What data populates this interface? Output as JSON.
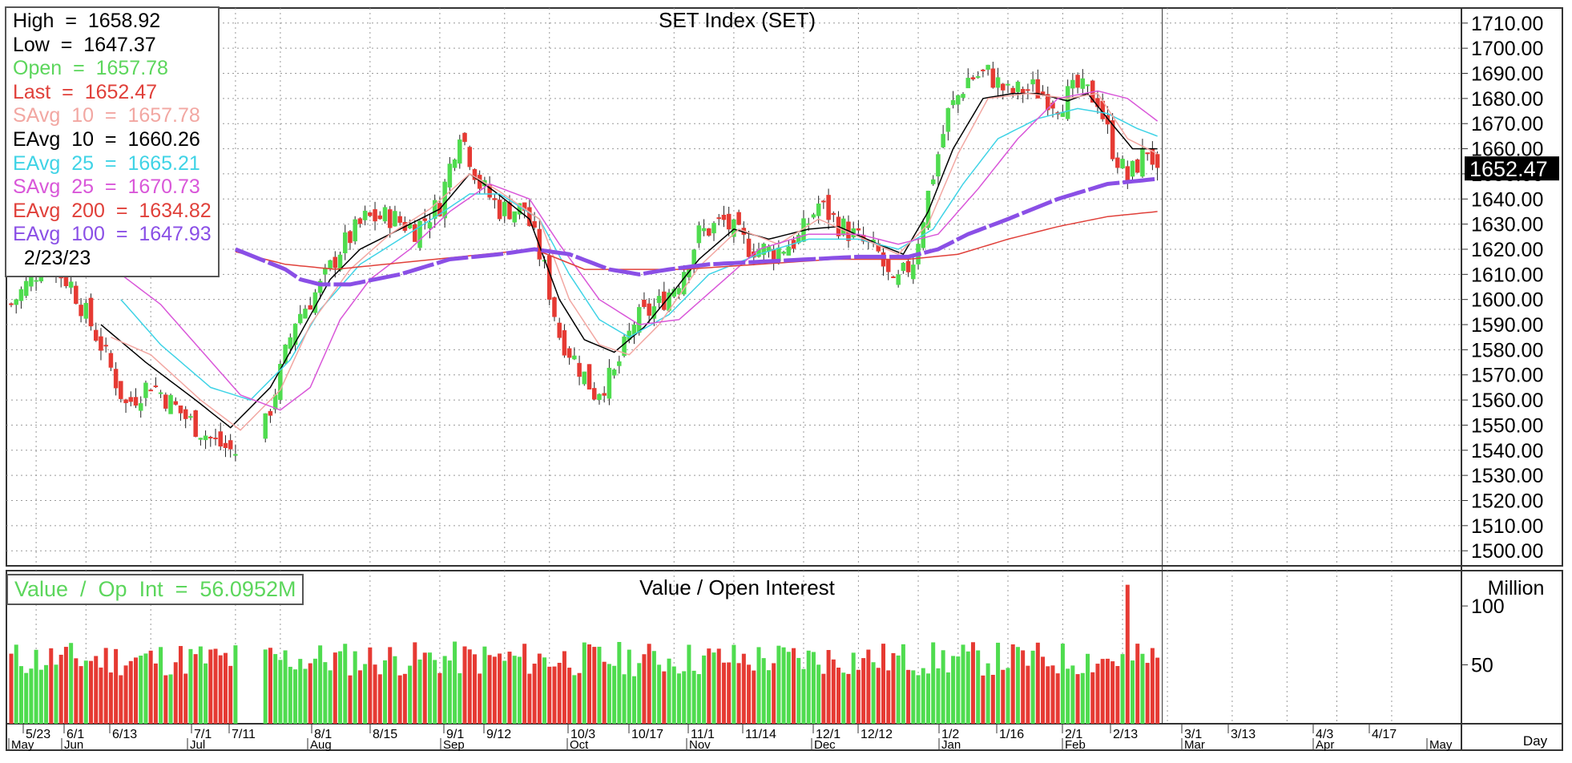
{
  "chart_data": {
    "type": "candlestick",
    "title": "SET  Index  (SET)",
    "last_price_tag": "1652.47",
    "price_axis": {
      "ylim": [
        1494,
        1716
      ],
      "ticks": [
        "1710.00",
        "1700.00",
        "1690.00",
        "1680.00",
        "1670.00",
        "1660.00",
        "1650.00",
        "1640.00",
        "1630.00",
        "1620.00",
        "1610.00",
        "1600.00",
        "1590.00",
        "1580.00",
        "1570.00",
        "1560.00",
        "1550.00",
        "1540.00",
        "1530.00",
        "1520.00",
        "1510.00",
        "1500.00"
      ]
    },
    "legend": [
      {
        "label": "High",
        "eq": "=",
        "value": "1658.92",
        "color": "#000000"
      },
      {
        "label": "Low",
        "eq": "=",
        "value": "1647.37",
        "color": "#000000"
      },
      {
        "label": "Open",
        "eq": "=",
        "value": "1657.78",
        "color": "#5cd65c"
      },
      {
        "label": "Last",
        "eq": "=",
        "value": "1652.47",
        "color": "#e0403a"
      },
      {
        "label": "SAvg  10",
        "eq": "=",
        "value": "1657.78",
        "color": "#f2a7a2"
      },
      {
        "label": "EAvg  10",
        "eq": "=",
        "value": "1660.26",
        "color": "#000000"
      },
      {
        "label": "EAvg  25",
        "eq": "=",
        "value": "1665.21",
        "color": "#3fd3e6"
      },
      {
        "label": "SAvg  25",
        "eq": "=",
        "value": "1670.73",
        "color": "#d957d9"
      },
      {
        "label": "EAvg  200",
        "eq": "=",
        "value": "1634.82",
        "color": "#e0403a"
      },
      {
        "label": "EAvg  100",
        "eq": "=",
        "value": "1647.93",
        "color": "#8a4fe6"
      }
    ],
    "legend_date": "2/23/23",
    "x_ticks": [
      "5/23",
      "6/1",
      "6/13",
      "7/1",
      "7/11",
      "8/1",
      "8/15",
      "9/1",
      "9/12",
      "10/3",
      "10/17",
      "11/1",
      "11/14",
      "12/1",
      "12/12",
      "1/2",
      "1/16",
      "2/1",
      "2/13",
      "3/1",
      "3/13",
      "4/3",
      "4/17"
    ],
    "x_months": [
      "May",
      "Jun",
      "Jul",
      "Aug",
      "Sep",
      "Oct",
      "Nov",
      "Dec",
      "Jan",
      "Feb",
      "Mar",
      "Apr",
      "May"
    ],
    "x_unit_label": "Day",
    "volume": {
      "title": "Value  /  Open  Interest",
      "legend": "Value  /  Op  Int  =  56.0952M",
      "unit_label": "Million",
      "ticks": [
        "100",
        "50"
      ],
      "ylim": [
        0,
        130
      ]
    },
    "price_anchors": [
      [
        0,
        1598
      ],
      [
        7,
        1616
      ],
      [
        12,
        1606
      ],
      [
        18,
        1582
      ],
      [
        23,
        1558
      ],
      [
        28,
        1567
      ],
      [
        35,
        1553
      ],
      [
        41,
        1543
      ],
      [
        46,
        1538
      ],
      [
        51,
        1550
      ],
      [
        57,
        1592
      ],
      [
        62,
        1605
      ],
      [
        66,
        1620
      ],
      [
        71,
        1632
      ],
      [
        76,
        1633
      ],
      [
        81,
        1628
      ],
      [
        86,
        1638
      ],
      [
        90,
        1668
      ],
      [
        94,
        1646
      ],
      [
        98,
        1636
      ],
      [
        103,
        1636
      ],
      [
        107,
        1612
      ],
      [
        110,
        1586
      ],
      [
        114,
        1573
      ],
      [
        117,
        1563
      ],
      [
        121,
        1570
      ],
      [
        125,
        1591
      ],
      [
        130,
        1598
      ],
      [
        134,
        1608
      ],
      [
        138,
        1626
      ],
      [
        143,
        1631
      ],
      [
        148,
        1621
      ],
      [
        153,
        1619
      ],
      [
        158,
        1624
      ],
      [
        162,
        1638
      ],
      [
        166,
        1630
      ],
      [
        170,
        1624
      ],
      [
        174,
        1618
      ],
      [
        177,
        1604
      ],
      [
        181,
        1616
      ],
      [
        184,
        1642
      ],
      [
        188,
        1674
      ],
      [
        192,
        1688
      ],
      [
        196,
        1690
      ],
      [
        200,
        1682
      ],
      [
        205,
        1684
      ],
      [
        210,
        1678
      ],
      [
        214,
        1684
      ],
      [
        218,
        1680
      ],
      [
        221,
        1660
      ],
      [
        224,
        1648
      ],
      [
        228,
        1660
      ],
      [
        230,
        1652
      ]
    ],
    "ohlc_last": {
      "open": 1657.78,
      "high": 1658.92,
      "low": 1647.37,
      "close": 1652.47
    },
    "ma_series": [
      {
        "name": "EAvg 10",
        "color": "#000000",
        "anchors": [
          [
            18,
            1590
          ],
          [
            27,
            1575
          ],
          [
            37,
            1560
          ],
          [
            44,
            1549
          ],
          [
            52,
            1565
          ],
          [
            59,
            1590
          ],
          [
            64,
            1608
          ],
          [
            70,
            1620
          ],
          [
            78,
            1628
          ],
          [
            86,
            1636
          ],
          [
            92,
            1650
          ],
          [
            97,
            1643
          ],
          [
            104,
            1632
          ],
          [
            110,
            1600
          ],
          [
            115,
            1584
          ],
          [
            121,
            1579
          ],
          [
            127,
            1589
          ],
          [
            132,
            1601
          ],
          [
            138,
            1616
          ],
          [
            145,
            1628
          ],
          [
            152,
            1624
          ],
          [
            160,
            1628
          ],
          [
            166,
            1629
          ],
          [
            174,
            1622
          ],
          [
            179,
            1618
          ],
          [
            184,
            1635
          ],
          [
            189,
            1660
          ],
          [
            195,
            1680
          ],
          [
            201,
            1682
          ],
          [
            206,
            1682
          ],
          [
            212,
            1679
          ],
          [
            216,
            1682
          ],
          [
            220,
            1672
          ],
          [
            225,
            1660
          ],
          [
            230,
            1660
          ]
        ]
      },
      {
        "name": "EAvg 25",
        "color": "#3fd3e6",
        "anchors": [
          [
            22,
            1600
          ],
          [
            30,
            1582
          ],
          [
            40,
            1565
          ],
          [
            48,
            1560
          ],
          [
            56,
            1576
          ],
          [
            62,
            1596
          ],
          [
            70,
            1614
          ],
          [
            78,
            1624
          ],
          [
            86,
            1634
          ],
          [
            92,
            1642
          ],
          [
            98,
            1642
          ],
          [
            106,
            1632
          ],
          [
            112,
            1610
          ],
          [
            118,
            1592
          ],
          [
            124,
            1585
          ],
          [
            132,
            1594
          ],
          [
            140,
            1610
          ],
          [
            150,
            1618
          ],
          [
            160,
            1624
          ],
          [
            170,
            1624
          ],
          [
            178,
            1620
          ],
          [
            185,
            1628
          ],
          [
            191,
            1646
          ],
          [
            198,
            1664
          ],
          [
            206,
            1672
          ],
          [
            214,
            1676
          ],
          [
            220,
            1674
          ],
          [
            226,
            1668
          ],
          [
            230,
            1665
          ]
        ]
      },
      {
        "name": "SAvg 10",
        "color": "#f2a7a2",
        "anchors": [
          [
            20,
            1585
          ],
          [
            28,
            1578
          ],
          [
            38,
            1560
          ],
          [
            46,
            1548
          ],
          [
            54,
            1564
          ],
          [
            60,
            1590
          ],
          [
            68,
            1612
          ],
          [
            76,
            1626
          ],
          [
            84,
            1636
          ],
          [
            92,
            1650
          ],
          [
            98,
            1643
          ],
          [
            106,
            1632
          ],
          [
            112,
            1600
          ],
          [
            118,
            1582
          ],
          [
            124,
            1578
          ],
          [
            130,
            1590
          ],
          [
            138,
            1613
          ],
          [
            146,
            1628
          ],
          [
            154,
            1622
          ],
          [
            162,
            1632
          ],
          [
            170,
            1625
          ],
          [
            178,
            1618
          ],
          [
            184,
            1630
          ],
          [
            190,
            1658
          ],
          [
            196,
            1680
          ],
          [
            204,
            1682
          ],
          [
            212,
            1680
          ],
          [
            218,
            1682
          ],
          [
            224,
            1664
          ],
          [
            230,
            1658
          ]
        ]
      },
      {
        "name": "SAvg 25",
        "color": "#d957d9",
        "anchors": [
          [
            22,
            1610
          ],
          [
            30,
            1598
          ],
          [
            38,
            1580
          ],
          [
            46,
            1562
          ],
          [
            54,
            1556
          ],
          [
            60,
            1565
          ],
          [
            66,
            1592
          ],
          [
            72,
            1608
          ],
          [
            80,
            1620
          ],
          [
            88,
            1635
          ],
          [
            96,
            1646
          ],
          [
            104,
            1640
          ],
          [
            110,
            1622
          ],
          [
            118,
            1600
          ],
          [
            126,
            1590
          ],
          [
            134,
            1592
          ],
          [
            142,
            1606
          ],
          [
            150,
            1620
          ],
          [
            160,
            1626
          ],
          [
            170,
            1626
          ],
          [
            178,
            1622
          ],
          [
            186,
            1626
          ],
          [
            194,
            1644
          ],
          [
            202,
            1664
          ],
          [
            210,
            1680
          ],
          [
            218,
            1683
          ],
          [
            224,
            1680
          ],
          [
            230,
            1671
          ]
        ]
      },
      {
        "name": "EAvg 200",
        "color": "#e0403a",
        "anchors": [
          [
            45,
            1619
          ],
          [
            55,
            1614
          ],
          [
            65,
            1612
          ],
          [
            75,
            1614
          ],
          [
            85,
            1616
          ],
          [
            95,
            1618
          ],
          [
            105,
            1620
          ],
          [
            115,
            1612
          ],
          [
            125,
            1612
          ],
          [
            135,
            1612
          ],
          [
            150,
            1614
          ],
          [
            165,
            1616
          ],
          [
            180,
            1616
          ],
          [
            190,
            1618
          ],
          [
            200,
            1624
          ],
          [
            210,
            1629
          ],
          [
            220,
            1633
          ],
          [
            230,
            1635
          ]
        ]
      },
      {
        "name": "EAvg 100",
        "color": "#8a4fe6",
        "anchors": [
          [
            45,
            1620
          ],
          [
            55,
            1612
          ],
          [
            58,
            1608
          ],
          [
            62,
            1606
          ],
          [
            68,
            1606
          ],
          [
            78,
            1610
          ],
          [
            88,
            1616
          ],
          [
            98,
            1618
          ],
          [
            105,
            1620
          ],
          [
            112,
            1618
          ],
          [
            120,
            1612
          ],
          [
            126,
            1610
          ],
          [
            132,
            1612
          ],
          [
            140,
            1614
          ],
          [
            150,
            1615
          ],
          [
            160,
            1616
          ],
          [
            170,
            1617
          ],
          [
            180,
            1617
          ],
          [
            186,
            1620
          ],
          [
            192,
            1626
          ],
          [
            200,
            1632
          ],
          [
            210,
            1640
          ],
          [
            220,
            1646
          ],
          [
            230,
            1648
          ]
        ]
      }
    ]
  }
}
